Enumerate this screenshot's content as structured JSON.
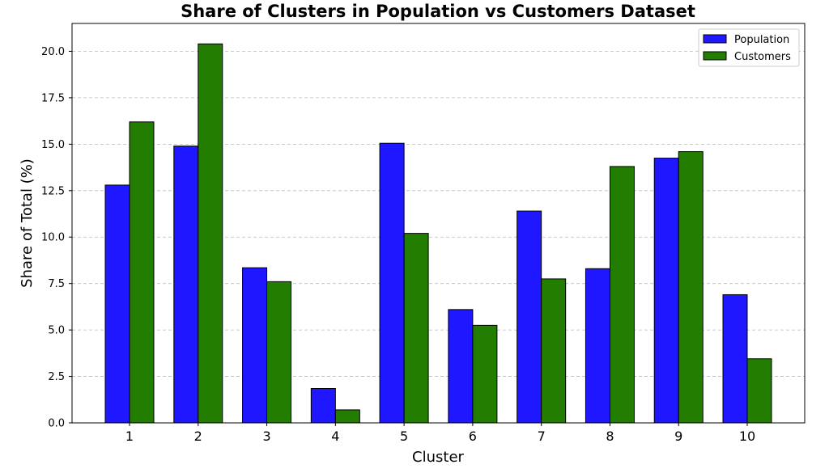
{
  "chart_data": {
    "type": "bar",
    "title": "Share of Clusters in Population vs Customers Dataset",
    "xlabel": "Cluster",
    "ylabel": "Share of Total (%)",
    "categories": [
      "1",
      "2",
      "3",
      "4",
      "5",
      "6",
      "7",
      "8",
      "9",
      "10"
    ],
    "series": [
      {
        "name": "Population",
        "color": "#1f17ff",
        "values": [
          12.8,
          14.9,
          8.35,
          1.85,
          15.05,
          6.1,
          11.4,
          8.3,
          14.25,
          6.9
        ]
      },
      {
        "name": "Customers",
        "color": "#227d00",
        "values": [
          16.2,
          20.4,
          7.6,
          0.7,
          10.2,
          5.25,
          7.75,
          13.8,
          14.6,
          3.45
        ]
      }
    ],
    "ylim": [
      0,
      21.5
    ],
    "yticks": [
      0.0,
      2.5,
      5.0,
      7.5,
      10.0,
      12.5,
      15.0,
      17.5,
      20.0
    ],
    "grid": "y-dashed",
    "legend_position": "top-right"
  }
}
